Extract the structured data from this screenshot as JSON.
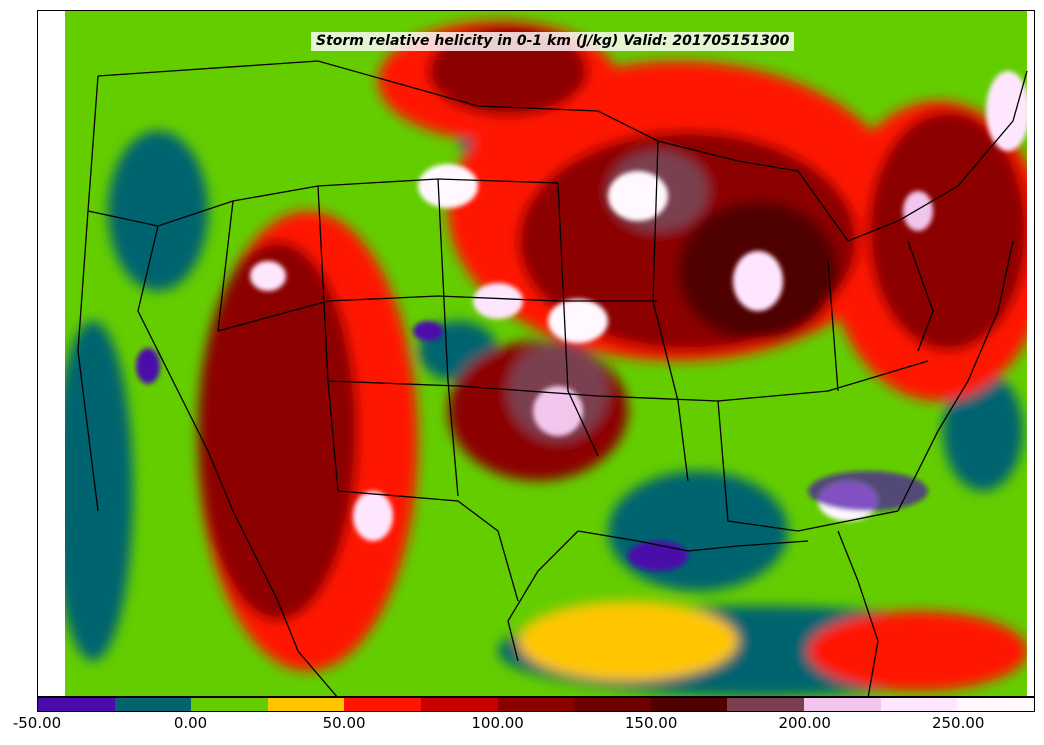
{
  "title": "Storm relative helicity in 0-1 km (J/kg) Valid: 201705151300",
  "colorbar": {
    "colors": [
      "#4b0aaa",
      "#05636f",
      "#63cd00",
      "#ffc600",
      "#ff1500",
      "#c80000",
      "#8c0000",
      "#6e0000",
      "#500000",
      "#7a3f4f",
      "#f2c6ec",
      "#ffe6ff",
      "#fff8ff"
    ],
    "ticks": [
      "-50.00",
      "0.00",
      "50.00",
      "100.00",
      "150.00",
      "200.00",
      "250.00"
    ],
    "tick_values": [
      -50,
      0,
      50,
      100,
      150,
      200,
      250
    ],
    "range": [
      -50,
      275
    ]
  }
}
